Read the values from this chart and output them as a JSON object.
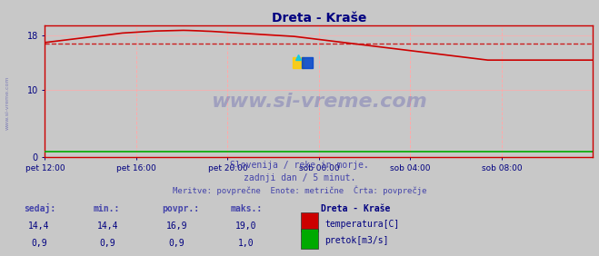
{
  "title": "Dreta - Kraše",
  "title_color": "#000080",
  "bg_color": "#c8c8c8",
  "plot_bg_color": "#c8c8c8",
  "x_labels": [
    "pet 12:00",
    "pet 16:00",
    "pet 20:00",
    "sob 00:00",
    "sob 04:00",
    "sob 08:00"
  ],
  "x_ticks_norm": [
    0.0,
    0.1667,
    0.3333,
    0.5,
    0.6667,
    0.8333
  ],
  "y_ticks": [
    0,
    10,
    18
  ],
  "ylim": [
    0,
    19.5
  ],
  "xlim": [
    0,
    1
  ],
  "avg_temp": 16.9,
  "watermark": "www.si-vreme.com",
  "watermark_color": "#4444aa",
  "watermark_alpha": 0.3,
  "subtitle1": "Slovenija / reke in morje.",
  "subtitle2": "zadnji dan / 5 minut.",
  "subtitle3": "Meritve: povprečne  Enote: metrične  Črta: povprečje",
  "subtitle_color": "#4444aa",
  "grid_color": "#ffaaaa",
  "axis_color": "#cc0000",
  "table_header_color": "#4444aa",
  "table_data_color": "#000080",
  "legend_title": "Dreta - Kraše",
  "legend_color": "#000080",
  "temp_color": "#cc0000",
  "pretok_color": "#00aa00",
  "avg_line_color": "#cc0000",
  "temp_data": [
    17.0,
    17.1,
    17.2,
    17.3,
    17.4,
    17.5,
    17.6,
    17.7,
    17.8,
    17.9,
    18.0,
    18.1,
    18.2,
    18.3,
    18.4,
    18.45,
    18.5,
    18.55,
    18.6,
    18.65,
    18.7,
    18.72,
    18.74,
    18.76,
    18.78,
    18.8,
    18.78,
    18.75,
    18.72,
    18.68,
    18.65,
    18.6,
    18.55,
    18.5,
    18.45,
    18.4,
    18.35,
    18.3,
    18.25,
    18.2,
    18.15,
    18.1,
    18.05,
    18.0,
    17.95,
    17.9,
    17.8,
    17.7,
    17.6,
    17.5,
    17.4,
    17.3,
    17.2,
    17.1,
    17.0,
    16.9,
    16.8,
    16.7,
    16.6,
    16.5,
    16.4,
    16.3,
    16.2,
    16.1,
    16.0,
    15.9,
    15.8,
    15.7,
    15.6,
    15.5,
    15.4,
    15.3,
    15.2,
    15.1,
    15.0,
    14.9,
    14.8,
    14.7,
    14.6,
    14.5,
    14.4,
    14.4,
    14.4,
    14.4,
    14.4,
    14.4,
    14.4,
    14.4,
    14.4,
    14.4,
    14.4,
    14.4,
    14.4,
    14.4,
    14.4,
    14.4,
    14.4,
    14.4,
    14.4,
    14.4
  ],
  "pretok_data": [
    0.9,
    0.9,
    0.9,
    0.9,
    0.9,
    0.9,
    0.9,
    0.9,
    0.9,
    0.9,
    0.9,
    0.9,
    0.9,
    0.9,
    0.9,
    0.9,
    0.9,
    0.9,
    0.9,
    0.9,
    0.9,
    0.9,
    0.9,
    0.9,
    0.9,
    0.9,
    0.9,
    0.9,
    0.9,
    0.9,
    0.9,
    0.9,
    0.9,
    0.9,
    0.9,
    0.9,
    0.9,
    0.9,
    0.9,
    0.9,
    0.9,
    0.9,
    0.9,
    0.9,
    0.9,
    0.9,
    0.9,
    0.9,
    0.9,
    0.9,
    0.9,
    0.9,
    0.9,
    0.9,
    0.9,
    0.9,
    0.9,
    0.9,
    0.9,
    0.9,
    0.9,
    0.9,
    0.9,
    0.9,
    0.9,
    0.9,
    0.9,
    0.9,
    0.9,
    0.9,
    0.9,
    0.9,
    0.9,
    0.9,
    0.9,
    0.9,
    0.9,
    0.9,
    0.9,
    0.9,
    0.9,
    0.9,
    0.9,
    0.9,
    0.9,
    0.9,
    0.9,
    0.9,
    0.9,
    0.9,
    0.9,
    0.9,
    0.9,
    0.9,
    0.9,
    0.9,
    0.9,
    0.9,
    0.9,
    0.9
  ],
  "table_headers": [
    "sedaj:",
    "min.:",
    "povpr.:",
    "maks.:"
  ],
  "table_rows": [
    {
      "sedaj": "14,4",
      "min": "14,4",
      "povpr": "16,9",
      "maks": "19,0",
      "label": "temperatura[C]",
      "color": "#cc0000"
    },
    {
      "sedaj": "0,9",
      "min": "0,9",
      "povpr": "0,9",
      "maks": "1,0",
      "label": "pretok[m3/s]",
      "color": "#00aa00"
    }
  ]
}
